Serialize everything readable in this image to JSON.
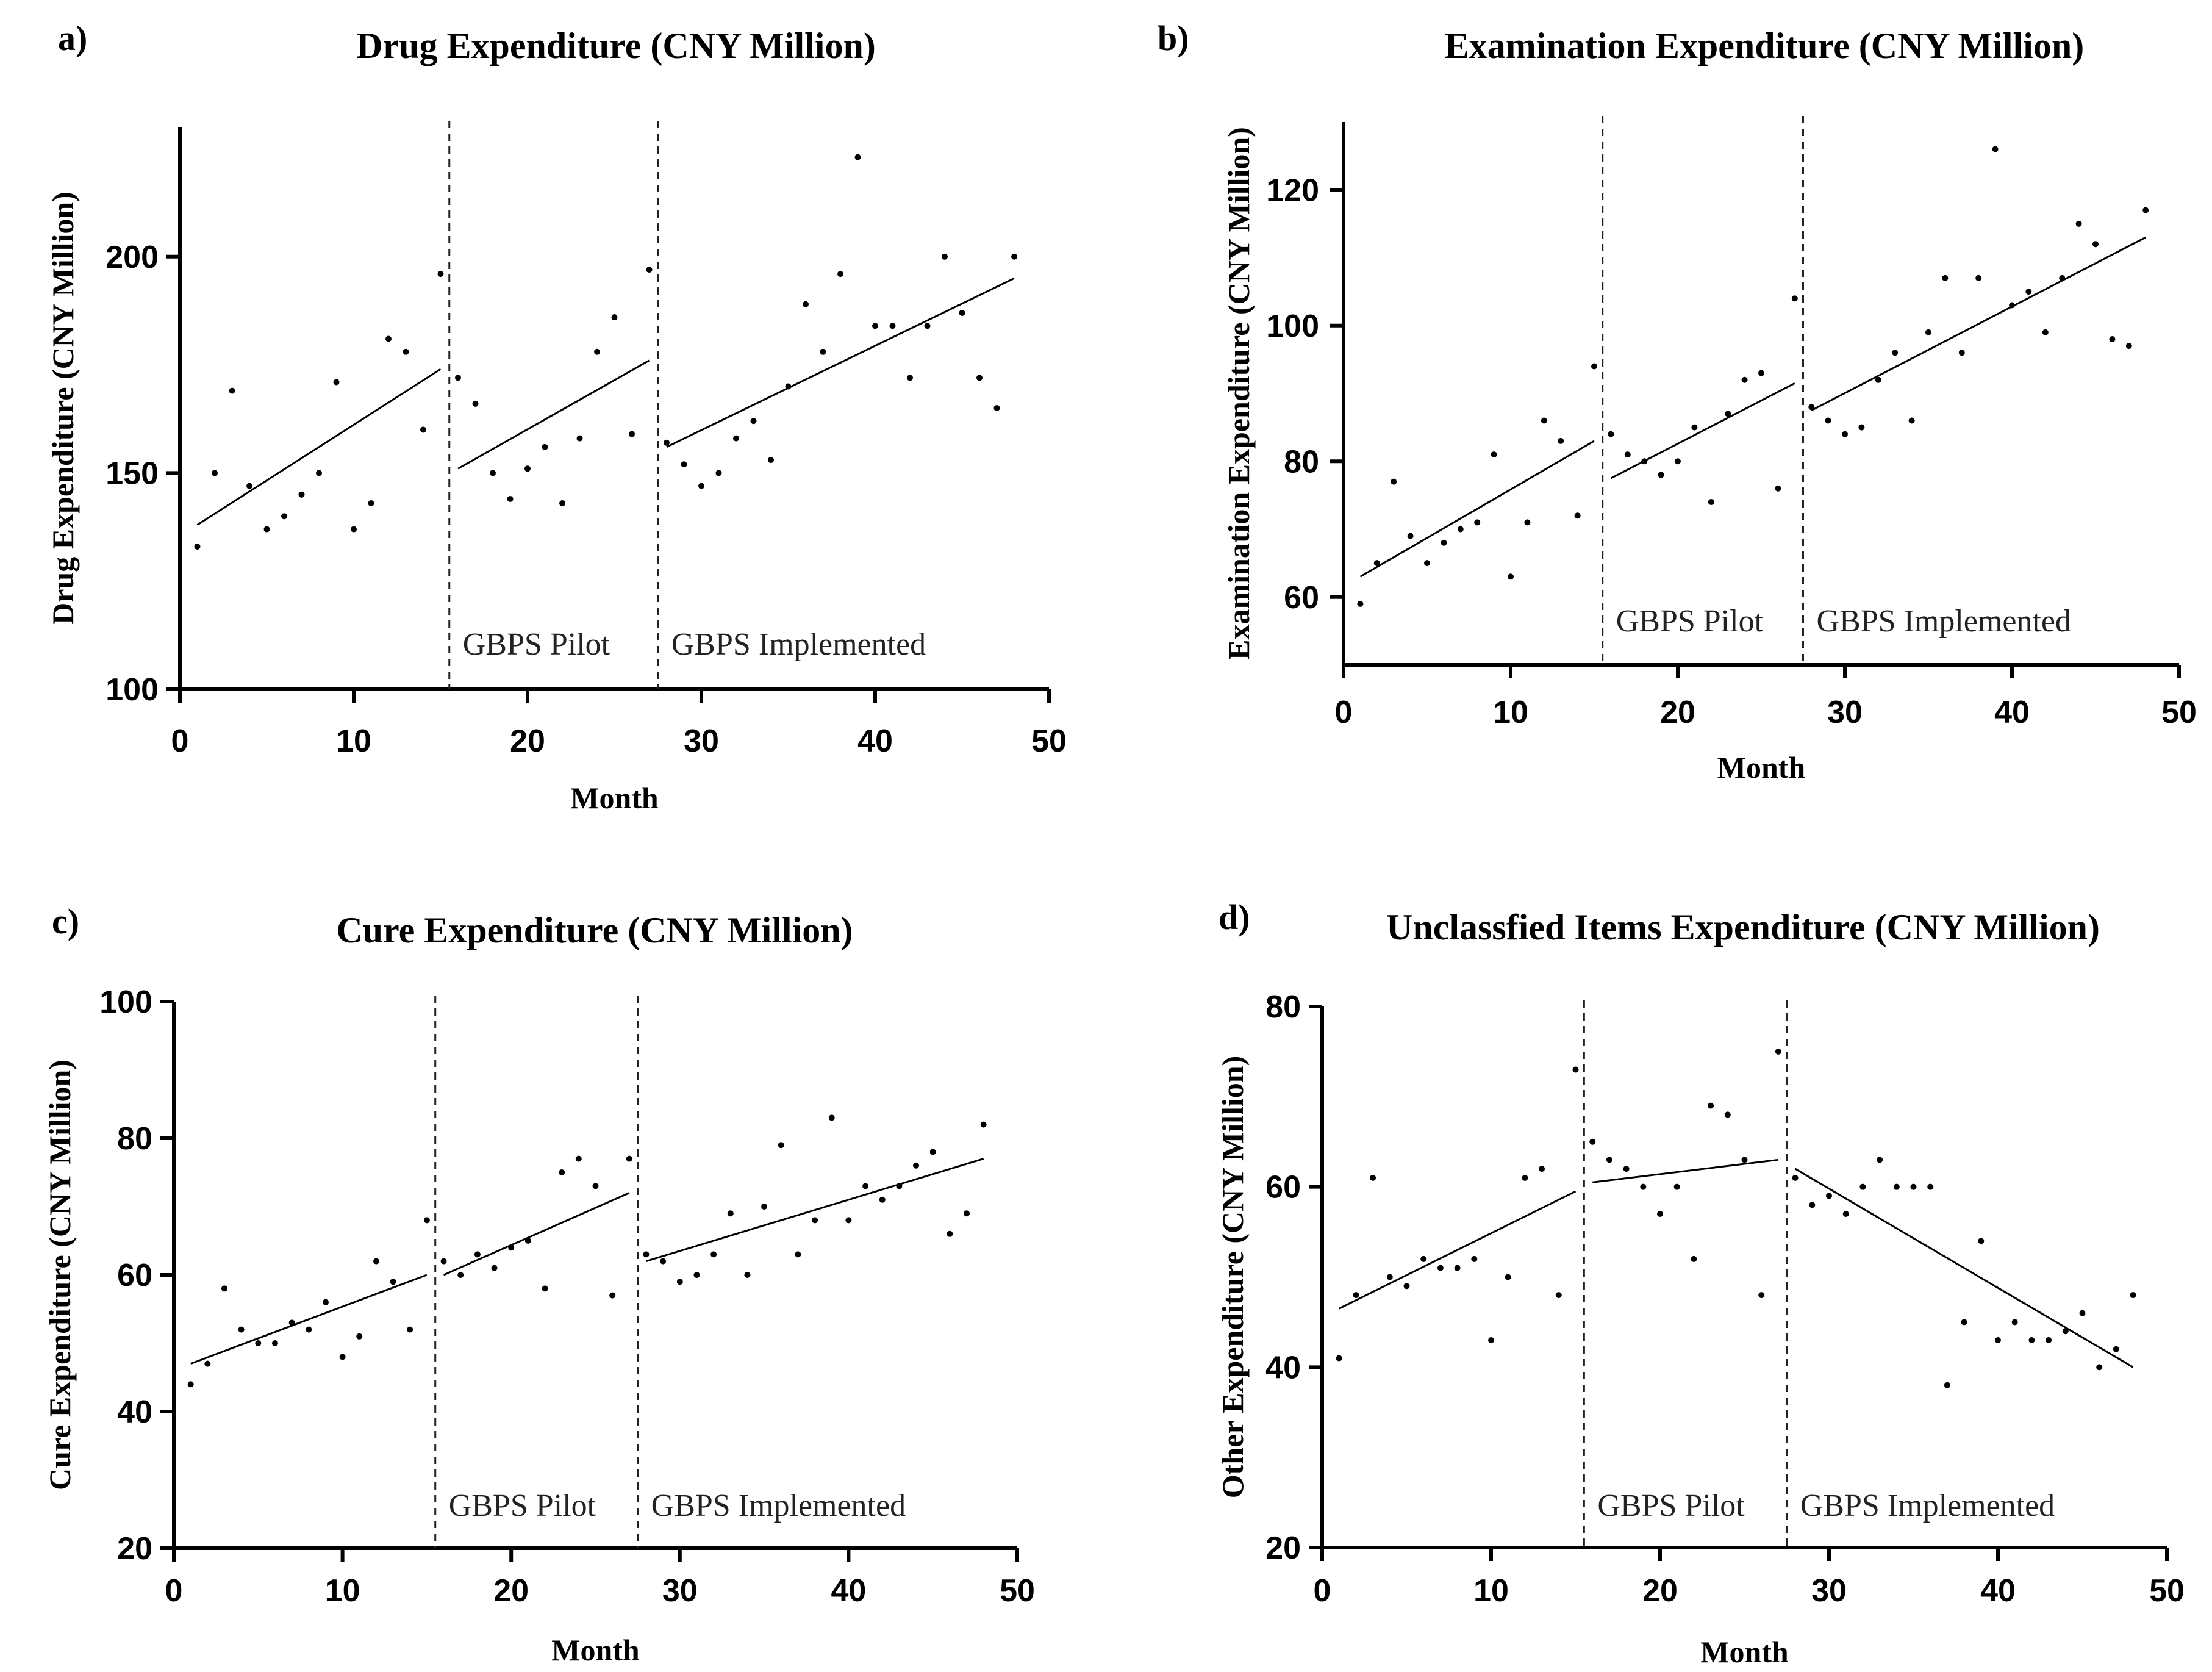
{
  "chart_data": [
    {
      "panel_label": "a)",
      "type": "scatter",
      "title": "Drug Expenditure (CNY Million)",
      "xlabel": "Month",
      "ylabel": "Drug Expenditure (CNY Million)",
      "xlim": [
        0,
        50
      ],
      "ylim": [
        100,
        230
      ],
      "xticks": [
        0,
        10,
        20,
        30,
        40,
        50
      ],
      "yticks": [
        100,
        150,
        200
      ],
      "breaks": [
        15.5,
        27.5
      ],
      "phase_labels": [
        "GBPS Pilot",
        "GBPS Implemented"
      ],
      "points": [
        [
          1,
          133
        ],
        [
          2,
          150
        ],
        [
          3,
          169
        ],
        [
          4,
          147
        ],
        [
          5,
          137
        ],
        [
          6,
          140
        ],
        [
          7,
          145
        ],
        [
          8,
          150
        ],
        [
          9,
          171
        ],
        [
          10,
          137
        ],
        [
          11,
          143
        ],
        [
          12,
          181
        ],
        [
          13,
          178
        ],
        [
          14,
          160
        ],
        [
          15,
          196
        ],
        [
          16,
          172
        ],
        [
          17,
          166
        ],
        [
          18,
          150
        ],
        [
          19,
          144
        ],
        [
          20,
          151
        ],
        [
          21,
          156
        ],
        [
          22,
          143
        ],
        [
          23,
          158
        ],
        [
          24,
          178
        ],
        [
          25,
          186
        ],
        [
          26,
          159
        ],
        [
          27,
          197
        ],
        [
          28,
          157
        ],
        [
          29,
          152
        ],
        [
          30,
          147
        ],
        [
          31,
          150
        ],
        [
          32,
          158
        ],
        [
          33,
          162
        ],
        [
          34,
          153
        ],
        [
          35,
          170
        ],
        [
          36,
          189
        ],
        [
          37,
          178
        ],
        [
          38,
          196
        ],
        [
          39,
          223
        ],
        [
          40,
          184
        ],
        [
          41,
          184
        ],
        [
          42,
          172
        ],
        [
          43,
          184
        ],
        [
          44,
          200
        ],
        [
          45,
          187
        ],
        [
          46,
          172
        ],
        [
          47,
          165
        ],
        [
          48,
          200
        ]
      ],
      "trend_segments": [
        [
          [
            1,
            138
          ],
          [
            15,
            174
          ]
        ],
        [
          [
            16,
            151
          ],
          [
            27,
            176
          ]
        ],
        [
          [
            28,
            156
          ],
          [
            48,
            195
          ]
        ]
      ]
    },
    {
      "panel_label": "b)",
      "type": "scatter",
      "title": "Examination Expenditure (CNY Million)",
      "xlabel": "Month",
      "ylabel": "Examination Expenditure (CNY Million)",
      "xlim": [
        0,
        50
      ],
      "ylim": [
        50,
        130
      ],
      "xticks": [
        0,
        10,
        20,
        30,
        40,
        50
      ],
      "yticks": [
        60,
        80,
        100,
        120
      ],
      "breaks": [
        15.5,
        27.5
      ],
      "phase_labels": [
        "GBPS Pilot",
        "GBPS Implemented"
      ],
      "points": [
        [
          1,
          59
        ],
        [
          2,
          65
        ],
        [
          3,
          77
        ],
        [
          4,
          69
        ],
        [
          5,
          65
        ],
        [
          6,
          68
        ],
        [
          7,
          70
        ],
        [
          8,
          71
        ],
        [
          9,
          81
        ],
        [
          10,
          63
        ],
        [
          11,
          71
        ],
        [
          12,
          86
        ],
        [
          13,
          83
        ],
        [
          14,
          72
        ],
        [
          15,
          94
        ],
        [
          16,
          84
        ],
        [
          17,
          81
        ],
        [
          18,
          80
        ],
        [
          19,
          78
        ],
        [
          20,
          80
        ],
        [
          21,
          85
        ],
        [
          22,
          74
        ],
        [
          23,
          87
        ],
        [
          24,
          92
        ],
        [
          25,
          93
        ],
        [
          26,
          76
        ],
        [
          27,
          104
        ],
        [
          28,
          88
        ],
        [
          29,
          86
        ],
        [
          30,
          84
        ],
        [
          31,
          85
        ],
        [
          32,
          92
        ],
        [
          33,
          96
        ],
        [
          34,
          86
        ],
        [
          35,
          99
        ],
        [
          36,
          107
        ],
        [
          37,
          96
        ],
        [
          38,
          107
        ],
        [
          39,
          126
        ],
        [
          40,
          103
        ],
        [
          41,
          105
        ],
        [
          42,
          99
        ],
        [
          43,
          107
        ],
        [
          44,
          115
        ],
        [
          45,
          112
        ],
        [
          46,
          98
        ],
        [
          47,
          97
        ],
        [
          48,
          117
        ]
      ],
      "trend_segments": [
        [
          [
            1,
            63
          ],
          [
            15,
            83
          ]
        ],
        [
          [
            16,
            77.5
          ],
          [
            27,
            91.5
          ]
        ],
        [
          [
            28,
            87.5
          ],
          [
            48,
            113
          ]
        ]
      ]
    },
    {
      "panel_label": "c)",
      "type": "scatter",
      "title": "Cure Expenditure (CNY Million)",
      "xlabel": "Month",
      "ylabel": "Cure Expenditure (CNY Million)",
      "xlim": [
        0,
        50
      ],
      "ylim": [
        20,
        100
      ],
      "xticks": [
        0,
        10,
        20,
        30,
        40,
        50
      ],
      "yticks": [
        20,
        40,
        60,
        80,
        100
      ],
      "breaks": [
        15.5,
        27.5
      ],
      "phase_labels": [
        "GBPS Pilot",
        "GBPS Implemented"
      ],
      "points": [
        [
          1,
          44
        ],
        [
          2,
          47
        ],
        [
          3,
          58
        ],
        [
          4,
          52
        ],
        [
          5,
          50
        ],
        [
          6,
          50
        ],
        [
          7,
          53
        ],
        [
          8,
          52
        ],
        [
          9,
          56
        ],
        [
          10,
          48
        ],
        [
          11,
          51
        ],
        [
          12,
          62
        ],
        [
          13,
          59
        ],
        [
          14,
          52
        ],
        [
          15,
          68
        ],
        [
          16,
          62
        ],
        [
          17,
          60
        ],
        [
          18,
          63
        ],
        [
          19,
          61
        ],
        [
          20,
          64
        ],
        [
          21,
          65
        ],
        [
          22,
          58
        ],
        [
          23,
          75
        ],
        [
          24,
          77
        ],
        [
          25,
          73
        ],
        [
          26,
          57
        ],
        [
          27,
          77
        ],
        [
          28,
          63
        ],
        [
          29,
          62
        ],
        [
          30,
          59
        ],
        [
          31,
          60
        ],
        [
          32,
          63
        ],
        [
          33,
          69
        ],
        [
          34,
          60
        ],
        [
          35,
          70
        ],
        [
          36,
          79
        ],
        [
          37,
          63
        ],
        [
          38,
          68
        ],
        [
          39,
          83
        ],
        [
          40,
          68
        ],
        [
          41,
          73
        ],
        [
          42,
          71
        ],
        [
          43,
          73
        ],
        [
          44,
          76
        ],
        [
          45,
          78
        ],
        [
          46,
          66
        ],
        [
          47,
          69
        ],
        [
          48,
          82
        ]
      ],
      "trend_segments": [
        [
          [
            1,
            47
          ],
          [
            15,
            60
          ]
        ],
        [
          [
            16,
            60
          ],
          [
            27,
            72
          ]
        ],
        [
          [
            28,
            62
          ],
          [
            48,
            77
          ]
        ]
      ]
    },
    {
      "panel_label": "d)",
      "type": "scatter",
      "title": "Unclassfied Items Expenditure (CNY Million)",
      "xlabel": "Month",
      "ylabel": "Other Expenditure (CNY Million)",
      "xlim": [
        0,
        50
      ],
      "ylim": [
        20,
        80
      ],
      "xticks": [
        0,
        10,
        20,
        30,
        40,
        50
      ],
      "yticks": [
        20,
        40,
        60,
        80
      ],
      "breaks": [
        15.5,
        27.5
      ],
      "phase_labels": [
        "GBPS Pilot",
        "GBPS Implemented"
      ],
      "points": [
        [
          1,
          41
        ],
        [
          2,
          48
        ],
        [
          3,
          61
        ],
        [
          4,
          50
        ],
        [
          5,
          49
        ],
        [
          6,
          52
        ],
        [
          7,
          51
        ],
        [
          8,
          51
        ],
        [
          9,
          52
        ],
        [
          10,
          43
        ],
        [
          11,
          50
        ],
        [
          12,
          61
        ],
        [
          13,
          62
        ],
        [
          14,
          48
        ],
        [
          15,
          73
        ],
        [
          16,
          65
        ],
        [
          17,
          63
        ],
        [
          18,
          62
        ],
        [
          19,
          60
        ],
        [
          20,
          57
        ],
        [
          21,
          60
        ],
        [
          22,
          52
        ],
        [
          23,
          69
        ],
        [
          24,
          68
        ],
        [
          25,
          63
        ],
        [
          26,
          48
        ],
        [
          27,
          75
        ],
        [
          28,
          61
        ],
        [
          29,
          58
        ],
        [
          30,
          59
        ],
        [
          31,
          57
        ],
        [
          32,
          60
        ],
        [
          33,
          63
        ],
        [
          34,
          60
        ],
        [
          35,
          60
        ],
        [
          36,
          60
        ],
        [
          37,
          38
        ],
        [
          38,
          45
        ],
        [
          39,
          54
        ],
        [
          40,
          43
        ],
        [
          41,
          45
        ],
        [
          42,
          43
        ],
        [
          43,
          43
        ],
        [
          44,
          44
        ],
        [
          45,
          46
        ],
        [
          46,
          40
        ],
        [
          47,
          42
        ],
        [
          48,
          48
        ]
      ],
      "trend_segments": [
        [
          [
            1,
            46.5
          ],
          [
            15,
            59.5
          ]
        ],
        [
          [
            16,
            60.5
          ],
          [
            27,
            63
          ]
        ],
        [
          [
            28,
            62
          ],
          [
            48,
            40
          ]
        ]
      ]
    }
  ]
}
